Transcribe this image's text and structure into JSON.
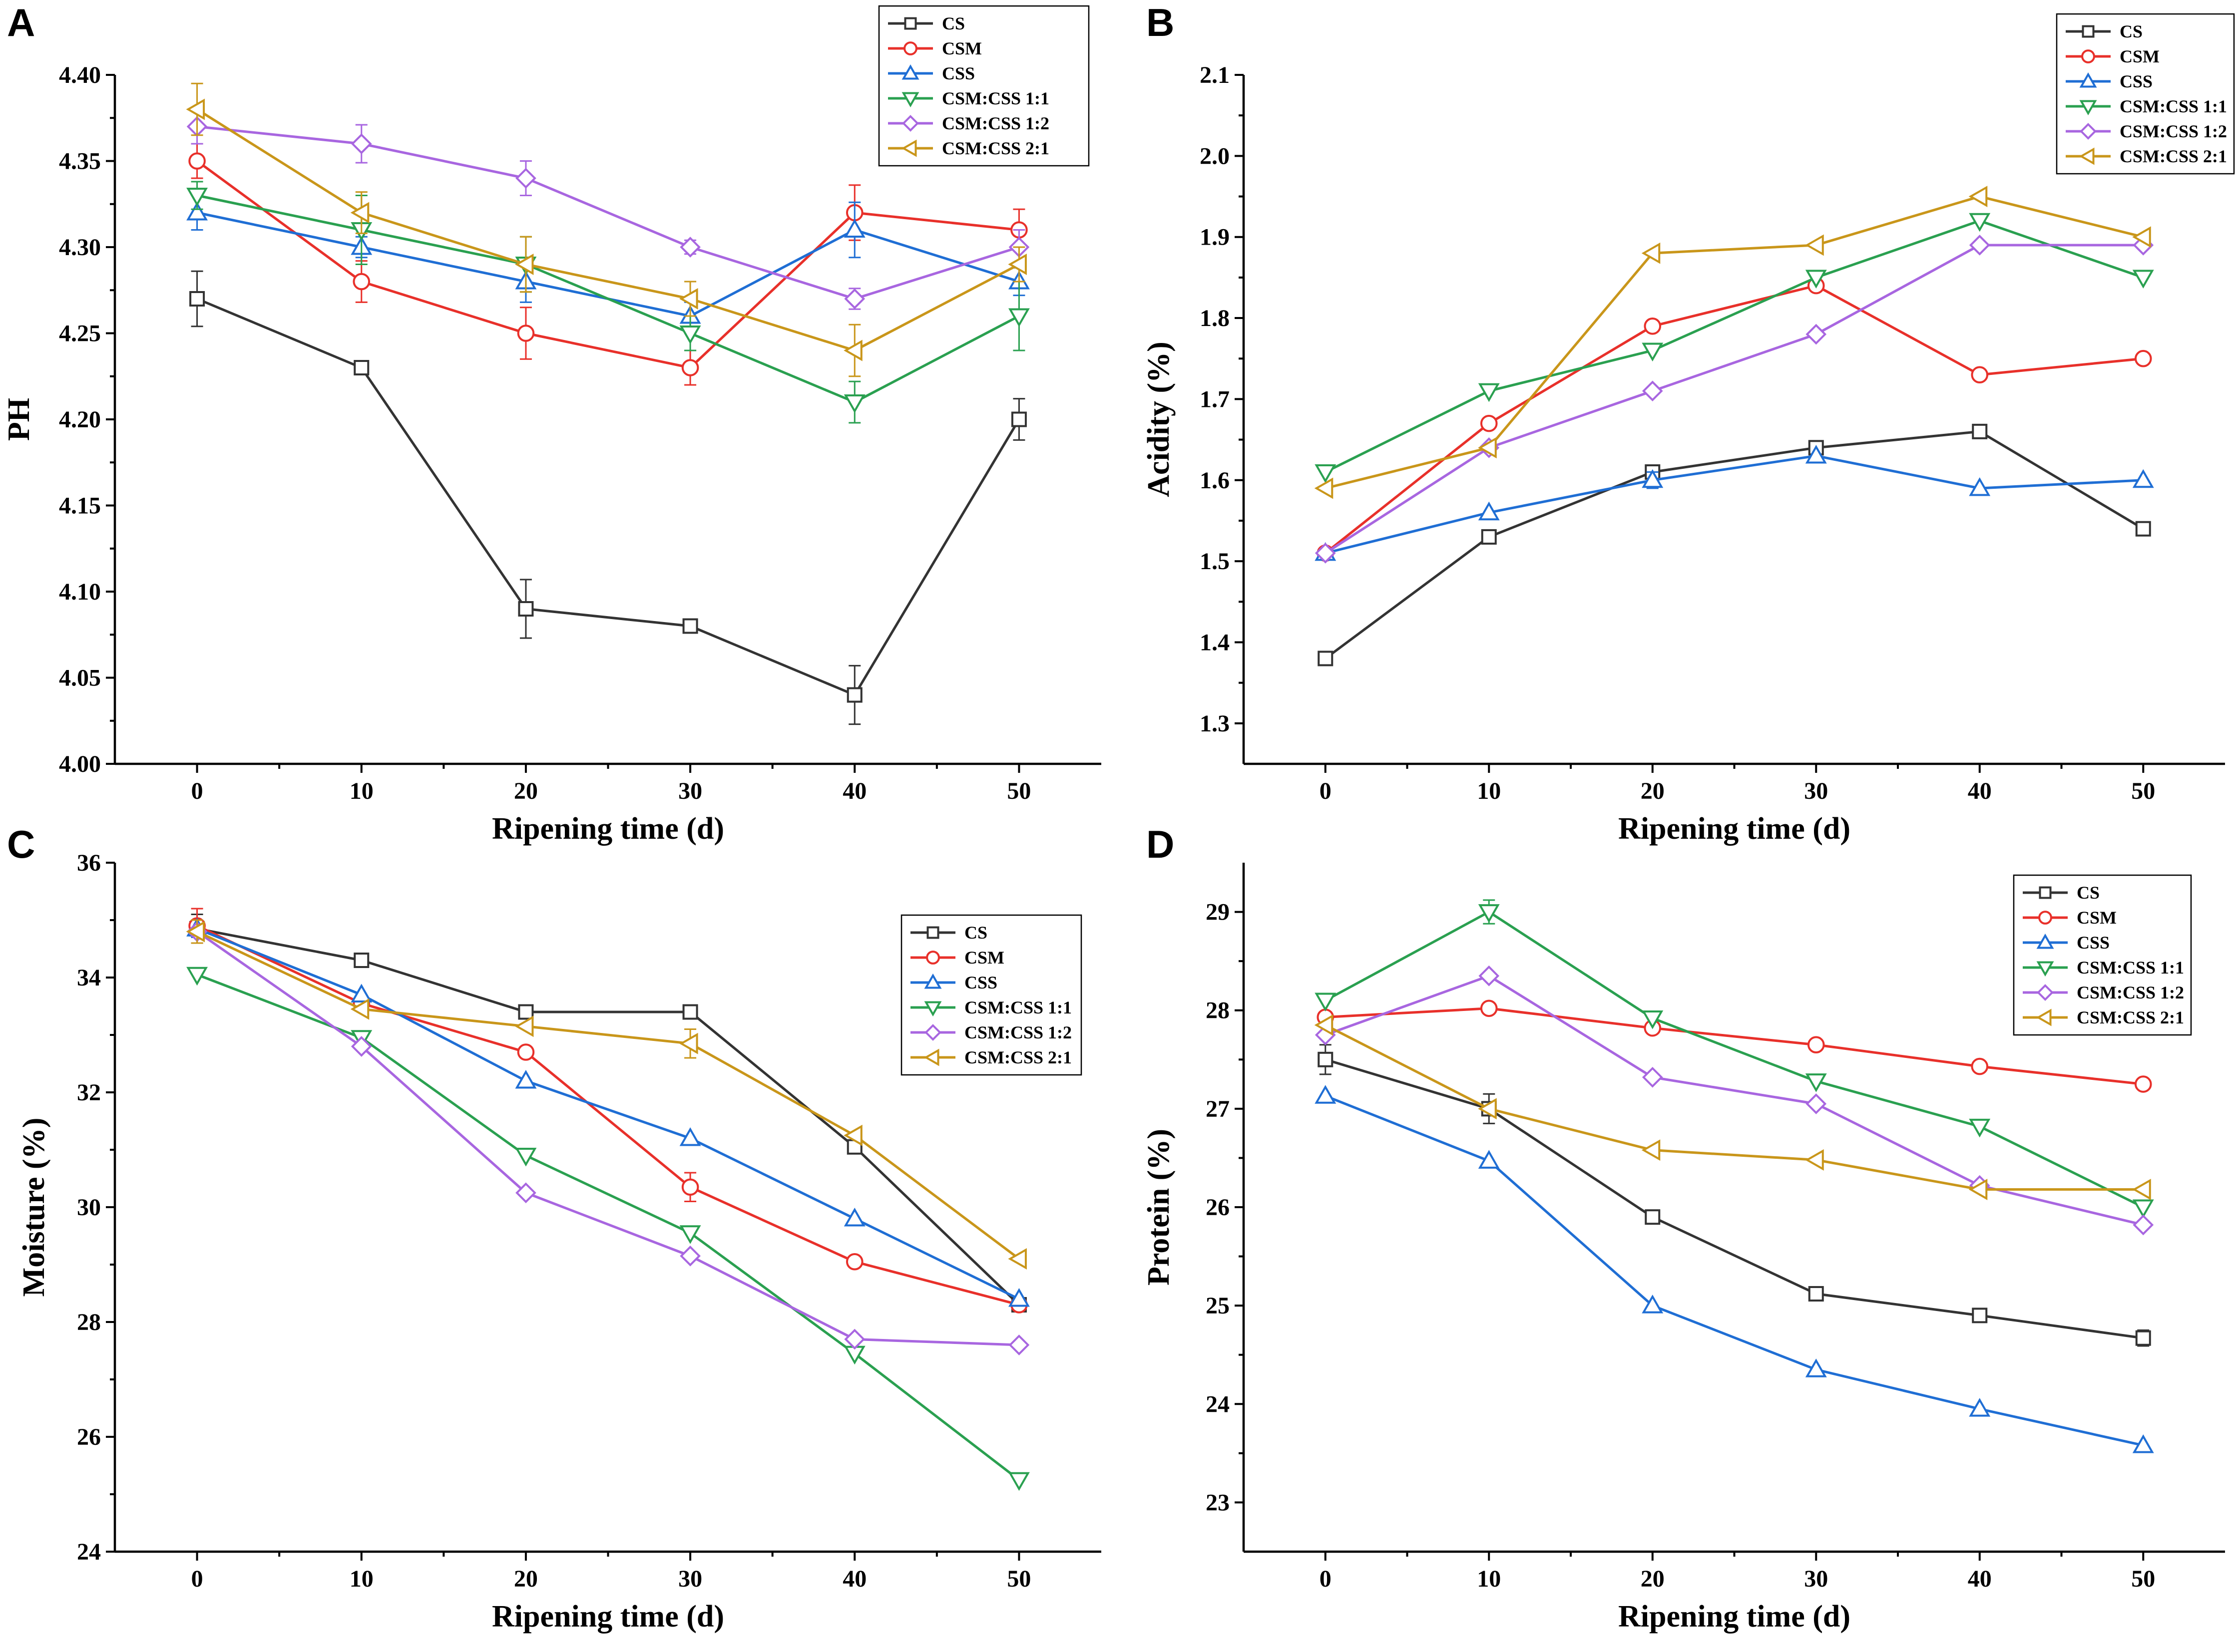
{
  "colors": {
    "CS": "#333333",
    "CSM": "#e8302a",
    "CSS": "#1f6ed4",
    "CSM:CSS 1:1": "#2aa050",
    "CSM:CSS 1:2": "#a866e0",
    "CSM:CSS 2:1": "#c9961a"
  },
  "chart_data": [
    {
      "panel": "A",
      "type": "line",
      "xlabel": "Ripening time (d)",
      "ylabel": "PH",
      "x": [
        0,
        10,
        20,
        30,
        40,
        50
      ],
      "xticks": [
        "0",
        "10",
        "20",
        "30",
        "40",
        "50"
      ],
      "xlim": [
        -5,
        55
      ],
      "ylim": [
        4.0,
        4.4
      ],
      "yticks": [
        "4.00",
        "4.05",
        "4.10",
        "4.15",
        "4.20",
        "4.25",
        "4.30",
        "4.35",
        "4.40"
      ],
      "legend_position": "top-right",
      "series": [
        {
          "name": "CS",
          "marker": "square",
          "values": [
            4.27,
            4.23,
            4.09,
            4.08,
            4.04,
            4.2
          ],
          "errors": [
            0.016,
            0.004,
            0.017,
            0.004,
            0.017,
            0.012
          ]
        },
        {
          "name": "CSM",
          "marker": "circle",
          "values": [
            4.35,
            4.28,
            4.25,
            4.23,
            4.32,
            4.31
          ],
          "errors": [
            0.01,
            0.012,
            0.015,
            0.01,
            0.016,
            0.012
          ]
        },
        {
          "name": "CSS",
          "marker": "triangle-up",
          "values": [
            4.32,
            4.3,
            4.28,
            4.26,
            4.31,
            4.28
          ],
          "errors": [
            0.01,
            0.006,
            0.012,
            0.008,
            0.016,
            0.008
          ]
        },
        {
          "name": "CSM:CSS 1:1",
          "marker": "triangle-down",
          "values": [
            4.33,
            4.31,
            4.29,
            4.25,
            4.21,
            4.26
          ],
          "errors": [
            0.008,
            0.02,
            0.016,
            0.01,
            0.012,
            0.02
          ]
        },
        {
          "name": "CSM:CSS 1:2",
          "marker": "diamond",
          "values": [
            4.37,
            4.36,
            4.34,
            4.3,
            4.27,
            4.3
          ],
          "errors": [
            0.01,
            0.011,
            0.01,
            0.004,
            0.006,
            0.01
          ]
        },
        {
          "name": "CSM:CSS 2:1",
          "marker": "triangle-left",
          "values": [
            4.38,
            4.32,
            4.29,
            4.27,
            4.24,
            4.29
          ],
          "errors": [
            0.015,
            0.012,
            0.016,
            0.01,
            0.015,
            0.01
          ]
        }
      ]
    },
    {
      "panel": "B",
      "type": "line",
      "xlabel": "Ripening time (d)",
      "ylabel": "Acidity (%)",
      "x": [
        0,
        10,
        20,
        30,
        40,
        50
      ],
      "xticks": [
        "0",
        "10",
        "20",
        "30",
        "40",
        "50"
      ],
      "xlim": [
        -5,
        55
      ],
      "ylim": [
        1.25,
        2.1
      ],
      "yticks": [
        "1.3",
        "1.4",
        "1.5",
        "1.6",
        "1.7",
        "1.8",
        "1.9",
        "2.0",
        "2.1"
      ],
      "legend_position": "top-right",
      "series": [
        {
          "name": "CS",
          "marker": "square",
          "values": [
            1.38,
            1.53,
            1.61,
            1.64,
            1.66,
            1.54
          ],
          "errors": [
            0,
            0,
            0,
            0,
            0,
            0
          ]
        },
        {
          "name": "CSM",
          "marker": "circle",
          "values": [
            1.51,
            1.67,
            1.79,
            1.84,
            1.73,
            1.75
          ],
          "errors": [
            0,
            0,
            0,
            0,
            0,
            0
          ]
        },
        {
          "name": "CSS",
          "marker": "triangle-up",
          "values": [
            1.51,
            1.56,
            1.6,
            1.63,
            1.59,
            1.6
          ],
          "errors": [
            0,
            0,
            0.01,
            0,
            0,
            0
          ]
        },
        {
          "name": "CSM:CSS 1:1",
          "marker": "triangle-down",
          "values": [
            1.61,
            1.71,
            1.76,
            1.85,
            1.92,
            1.85
          ],
          "errors": [
            0,
            0,
            0,
            0,
            0,
            0
          ]
        },
        {
          "name": "CSM:CSS 1:2",
          "marker": "diamond",
          "values": [
            1.51,
            1.64,
            1.71,
            1.78,
            1.89,
            1.89
          ],
          "errors": [
            0,
            0,
            0,
            0,
            0,
            0
          ]
        },
        {
          "name": "CSM:CSS 2:1",
          "marker": "triangle-left",
          "values": [
            1.59,
            1.64,
            1.88,
            1.89,
            1.95,
            1.9
          ],
          "errors": [
            0,
            0,
            0,
            0,
            0,
            0
          ]
        }
      ]
    },
    {
      "panel": "C",
      "type": "line",
      "xlabel": "Ripening time (d)",
      "ylabel": "Moisture (%)",
      "x": [
        0,
        10,
        20,
        30,
        40,
        50
      ],
      "xticks": [
        "0",
        "10",
        "20",
        "30",
        "40",
        "50"
      ],
      "xlim": [
        -5,
        55
      ],
      "ylim": [
        24,
        36
      ],
      "yticks": [
        "24",
        "26",
        "28",
        "30",
        "32",
        "34",
        "36"
      ],
      "legend_position": "top-right",
      "series": [
        {
          "name": "CS",
          "marker": "square",
          "values": [
            34.85,
            34.3,
            33.4,
            33.4,
            31.05,
            28.3
          ],
          "errors": [
            0.25,
            0,
            0,
            0,
            0,
            0
          ]
        },
        {
          "name": "CSM",
          "marker": "circle",
          "values": [
            34.9,
            33.55,
            32.7,
            30.35,
            29.05,
            28.3
          ],
          "errors": [
            0.3,
            0,
            0,
            0.25,
            0,
            0
          ]
        },
        {
          "name": "CSS",
          "marker": "triangle-up",
          "values": [
            34.85,
            33.7,
            32.2,
            31.2,
            29.8,
            28.4
          ],
          "errors": [
            0.15,
            0,
            0,
            0,
            0,
            0
          ]
        },
        {
          "name": "CSM:CSS 1:1",
          "marker": "triangle-down",
          "values": [
            34.05,
            32.95,
            30.9,
            29.55,
            27.45,
            25.25
          ],
          "errors": [
            0,
            0.1,
            0,
            0,
            0,
            0
          ]
        },
        {
          "name": "CSM:CSS 1:2",
          "marker": "diamond",
          "values": [
            34.8,
            32.8,
            30.25,
            29.15,
            27.7,
            27.6
          ],
          "errors": [
            0.2,
            0,
            0,
            0,
            0,
            0
          ]
        },
        {
          "name": "CSM:CSS 2:1",
          "marker": "triangle-left",
          "values": [
            34.8,
            33.45,
            33.15,
            32.85,
            31.25,
            29.1
          ],
          "errors": [
            0.2,
            0,
            0,
            0.25,
            0,
            0
          ]
        }
      ]
    },
    {
      "panel": "D",
      "type": "line",
      "xlabel": "Ripening time (d)",
      "ylabel": "Protein (%)",
      "x": [
        0,
        10,
        20,
        30,
        40,
        50
      ],
      "xticks": [
        "0",
        "10",
        "20",
        "30",
        "40",
        "50"
      ],
      "xlim": [
        -5,
        55
      ],
      "ylim": [
        22.5,
        29.5
      ],
      "yticks": [
        "23",
        "24",
        "25",
        "26",
        "27",
        "28",
        "29"
      ],
      "legend_position": "top-right",
      "series": [
        {
          "name": "CS",
          "marker": "square",
          "values": [
            27.5,
            27.0,
            25.9,
            25.12,
            24.9,
            24.67
          ],
          "errors": [
            0.15,
            0.15,
            0,
            0,
            0,
            0.08
          ]
        },
        {
          "name": "CSM",
          "marker": "circle",
          "values": [
            27.93,
            28.02,
            27.82,
            27.65,
            27.43,
            27.25
          ],
          "errors": [
            0,
            0,
            0,
            0,
            0,
            0
          ]
        },
        {
          "name": "CSS",
          "marker": "triangle-up",
          "values": [
            27.13,
            26.47,
            25.0,
            24.35,
            23.95,
            23.58
          ],
          "errors": [
            0,
            0,
            0,
            0,
            0,
            0
          ]
        },
        {
          "name": "CSM:CSS 1:1",
          "marker": "triangle-down",
          "values": [
            28.1,
            29.0,
            27.92,
            27.28,
            26.82,
            26.0
          ],
          "errors": [
            0,
            0.12,
            0,
            0,
            0,
            0
          ]
        },
        {
          "name": "CSM:CSS 1:2",
          "marker": "diamond",
          "values": [
            27.75,
            28.35,
            27.32,
            27.05,
            26.22,
            25.82
          ],
          "errors": [
            0,
            0,
            0,
            0,
            0,
            0
          ]
        },
        {
          "name": "CSM:CSS 2:1",
          "marker": "triangle-left",
          "values": [
            27.85,
            27.0,
            26.58,
            26.48,
            26.18,
            26.18
          ],
          "errors": [
            0,
            0,
            0,
            0,
            0,
            0
          ]
        }
      ]
    }
  ]
}
